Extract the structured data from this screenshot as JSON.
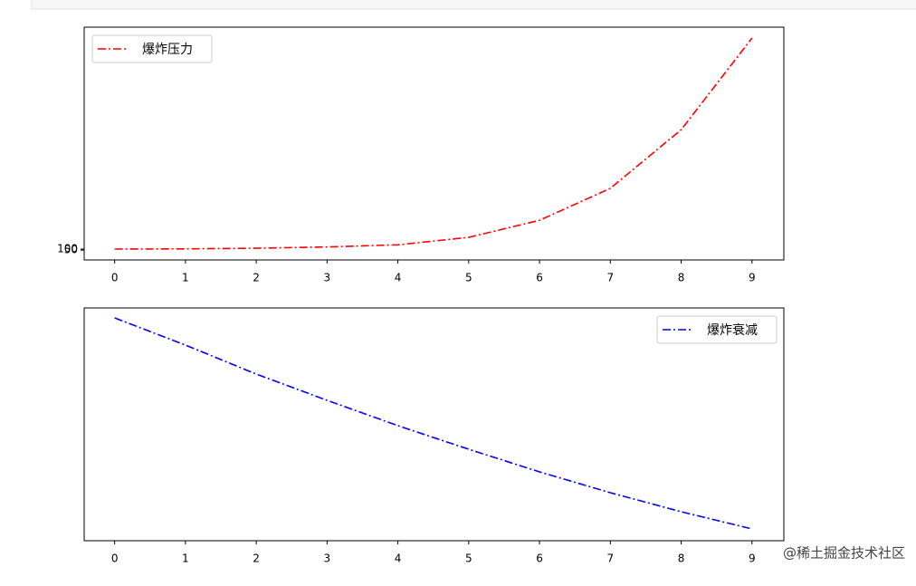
{
  "chart_data": [
    {
      "type": "line",
      "legend": "upper left",
      "x": [
        0,
        1,
        2,
        3,
        4,
        5,
        6,
        7,
        8,
        9
      ],
      "series": [
        {
          "name": "爆炸压力",
          "color": "#ff0000",
          "values": [
            100,
            110,
            140,
            200,
            300,
            650,
            1450,
            2950,
            5700,
            10000
          ]
        }
      ],
      "xlim": [
        -0.43,
        9.45
      ],
      "xticks": [
        0,
        1,
        2,
        3,
        4,
        5,
        6,
        7,
        8,
        9
      ],
      "ylim": [
        -410,
        10510
      ],
      "yticks": [
        50,
        100
      ]
    },
    {
      "type": "line",
      "legend": "upper right",
      "x": [
        0,
        1,
        2,
        3,
        4,
        5,
        6,
        7,
        8,
        9
      ],
      "series": [
        {
          "name": "爆炸衰减",
          "color": "#0000ff",
          "values": [
            246,
            216,
            184,
            155,
            127,
            101,
            76,
            53,
            32,
            13
          ]
        }
      ],
      "xlim": [
        -0.43,
        9.45
      ],
      "xticks": [
        0,
        1,
        2,
        3,
        4,
        5,
        6,
        7,
        8,
        9
      ],
      "ylim": [
        0,
        257
      ],
      "yticks": []
    }
  ],
  "watermark": "@稀土掘金技术社区"
}
